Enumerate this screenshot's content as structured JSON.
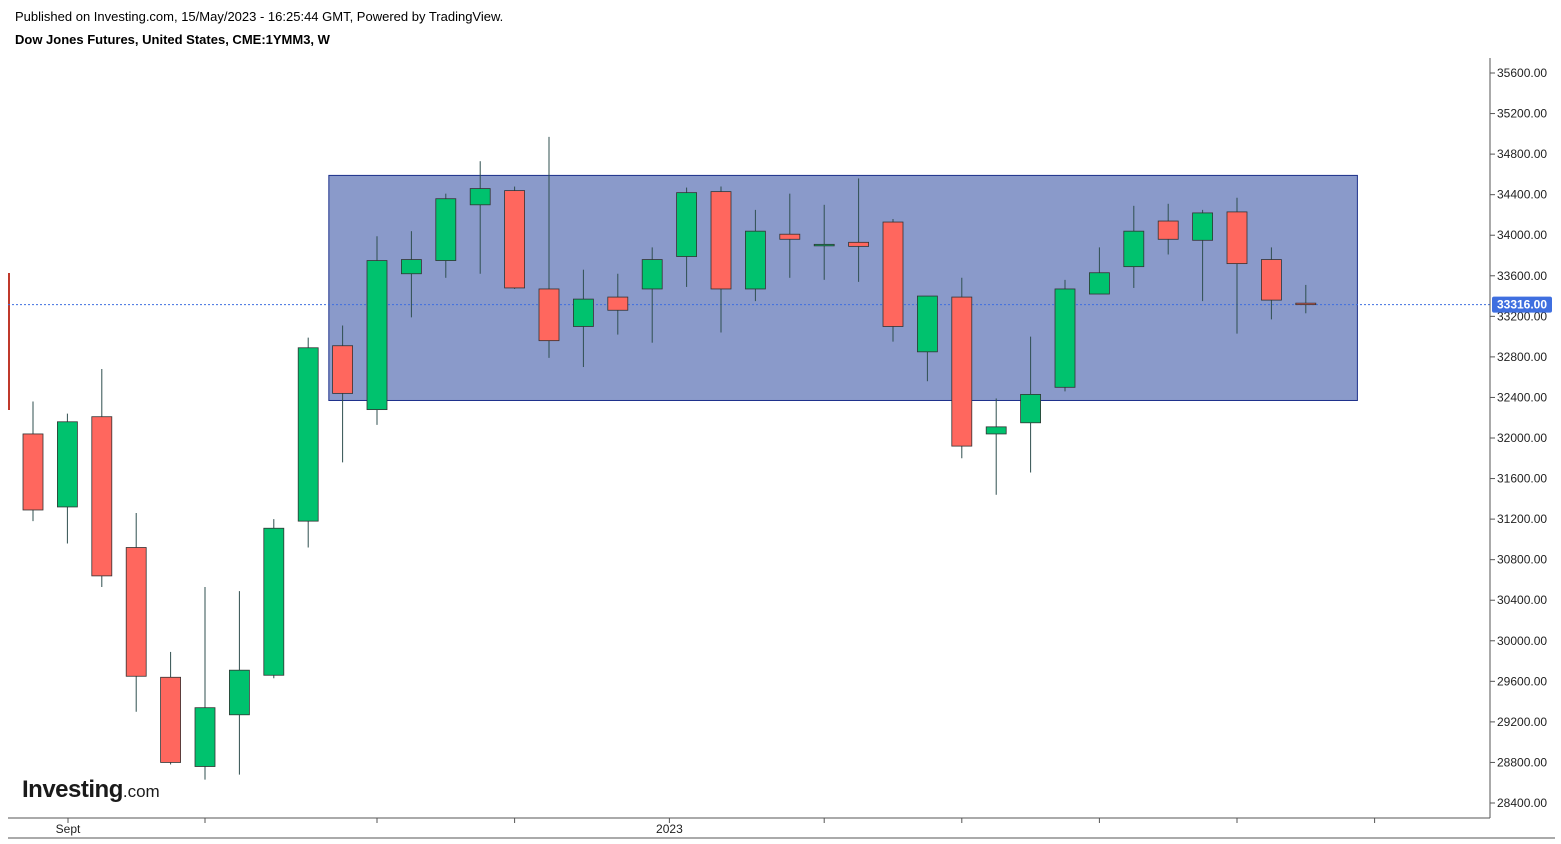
{
  "header": {
    "published": "Published on Investing.com, 15/May/2023 - 16:25:44 GMT, Powered by TradingView.",
    "instrument": "Dow Jones Futures, United States, CME:1YMM3, W"
  },
  "logo": {
    "word": "Investing",
    "suffix": ".com"
  },
  "colors": {
    "up": "#00c26e",
    "down": "#ff675e",
    "wick": "#2f4f4f",
    "range_box": "#8a9aca",
    "range_border": "#1c2f8a",
    "last_price_bg": "#3f6fe0",
    "price_line": "#3f6fe0"
  },
  "chart_data": {
    "type": "candlestick",
    "interval": "W",
    "y_axis": {
      "ticks": [
        "35600.00",
        "35200.00",
        "34800.00",
        "34400.00",
        "34000.00",
        "33600.00",
        "33200.00",
        "32800.00",
        "32400.00",
        "32000.00",
        "31600.00",
        "31200.00",
        "30800.00",
        "30400.00",
        "30000.00",
        "29600.00",
        "29200.00",
        "28800.00",
        "28400.00"
      ],
      "range": [
        28220,
        35760
      ],
      "position": "right"
    },
    "x_axis": {
      "labels": [
        {
          "text": "Sept",
          "candle": 1
        },
        {
          "text": "2023",
          "candle": 18.5
        }
      ],
      "tick_candles": [
        5,
        10,
        14,
        18.5,
        23,
        27,
        31,
        35,
        39
      ]
    },
    "last_price": "33316.00",
    "last_price_value": 33316,
    "range_box": {
      "top": 34590,
      "bottom": 32370,
      "from_candle": 8.6,
      "to_candle": 38.5
    },
    "candles": [
      {
        "o": 32040,
        "h": 32360,
        "l": 31180,
        "c": 31290
      },
      {
        "o": 31320,
        "h": 32240,
        "l": 30960,
        "c": 32160
      },
      {
        "o": 32210,
        "h": 32680,
        "l": 30530,
        "c": 30640
      },
      {
        "o": 30920,
        "h": 31260,
        "l": 29300,
        "c": 29650
      },
      {
        "o": 29640,
        "h": 29890,
        "l": 28780,
        "c": 28800
      },
      {
        "o": 28760,
        "h": 30530,
        "l": 28630,
        "c": 29340
      },
      {
        "o": 29270,
        "h": 30490,
        "l": 28680,
        "c": 29710
      },
      {
        "o": 29660,
        "h": 31200,
        "l": 29630,
        "c": 31110
      },
      {
        "o": 31180,
        "h": 32990,
        "l": 30920,
        "c": 32890
      },
      {
        "o": 32910,
        "h": 33110,
        "l": 31760,
        "c": 32440
      },
      {
        "o": 32280,
        "h": 33990,
        "l": 32130,
        "c": 33750
      },
      {
        "o": 33620,
        "h": 34040,
        "l": 33190,
        "c": 33760
      },
      {
        "o": 33750,
        "h": 34410,
        "l": 33580,
        "c": 34360
      },
      {
        "o": 34300,
        "h": 34730,
        "l": 33620,
        "c": 34460
      },
      {
        "o": 34440,
        "h": 34480,
        "l": 33470,
        "c": 33480
      },
      {
        "o": 33470,
        "h": 34970,
        "l": 32790,
        "c": 32960
      },
      {
        "o": 33100,
        "h": 33660,
        "l": 32700,
        "c": 33370
      },
      {
        "o": 33390,
        "h": 33620,
        "l": 33020,
        "c": 33260
      },
      {
        "o": 33470,
        "h": 33880,
        "l": 32940,
        "c": 33760
      },
      {
        "o": 33790,
        "h": 34470,
        "l": 33490,
        "c": 34420
      },
      {
        "o": 34430,
        "h": 34480,
        "l": 33040,
        "c": 33470
      },
      {
        "o": 33470,
        "h": 34250,
        "l": 33350,
        "c": 34040
      },
      {
        "o": 34010,
        "h": 34410,
        "l": 33580,
        "c": 33960
      },
      {
        "o": 33900,
        "h": 34300,
        "l": 33560,
        "c": 33910
      },
      {
        "o": 33930,
        "h": 34560,
        "l": 33540,
        "c": 33890
      },
      {
        "o": 34130,
        "h": 34160,
        "l": 32950,
        "c": 33100
      },
      {
        "o": 32850,
        "h": 33400,
        "l": 32560,
        "c": 33400
      },
      {
        "o": 33390,
        "h": 33580,
        "l": 31800,
        "c": 31920
      },
      {
        "o": 32040,
        "h": 32390,
        "l": 31440,
        "c": 32110
      },
      {
        "o": 32150,
        "h": 33000,
        "l": 31660,
        "c": 32430
      },
      {
        "o": 32500,
        "h": 33560,
        "l": 32460,
        "c": 33470
      },
      {
        "o": 33420,
        "h": 33880,
        "l": 33420,
        "c": 33630
      },
      {
        "o": 33690,
        "h": 34290,
        "l": 33480,
        "c": 34040
      },
      {
        "o": 34140,
        "h": 34310,
        "l": 33810,
        "c": 33960
      },
      {
        "o": 33950,
        "h": 34250,
        "l": 33350,
        "c": 34220
      },
      {
        "o": 34230,
        "h": 34370,
        "l": 33030,
        "c": 33720
      },
      {
        "o": 33760,
        "h": 33880,
        "l": 33170,
        "c": 33360
      },
      {
        "o": 33330,
        "h": 33510,
        "l": 33230,
        "c": 33316
      }
    ]
  }
}
